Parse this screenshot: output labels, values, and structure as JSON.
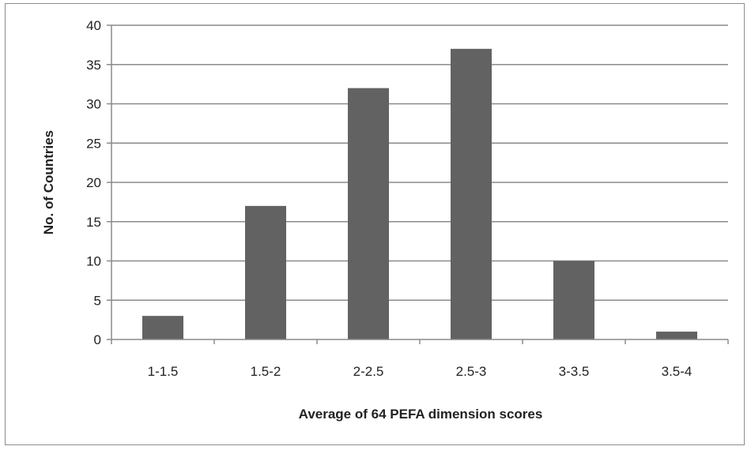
{
  "chart_data": {
    "type": "bar",
    "title": "",
    "xlabel": "Average of 64 PEFA dimension scores",
    "ylabel": "No. of Countries",
    "categories": [
      "1-1.5",
      "1.5-2",
      "2-2.5",
      "2.5-3",
      "3-3.5",
      "3.5-4"
    ],
    "values": [
      3,
      17,
      32,
      37,
      10,
      1
    ],
    "ylim": [
      0,
      40
    ],
    "yticks": [
      0,
      5,
      10,
      15,
      20,
      25,
      30,
      35,
      40
    ],
    "grid": "horizontal",
    "legend": "none",
    "bar_color": "#626262",
    "grid_color": "#8a8a8a",
    "axis_color": "#8a8a8a"
  }
}
